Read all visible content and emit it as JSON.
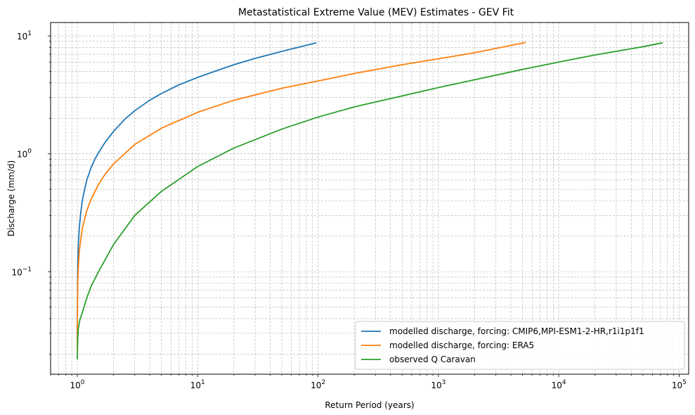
{
  "chart_data": {
    "type": "line",
    "title": "Metastatistical Extreme Value (MEV) Estimates - GEV Fit",
    "xlabel": "Return Period (years)",
    "ylabel": "Discharge (mm/d)",
    "xscale": "log",
    "yscale": "log",
    "xlim": [
      0.6,
      120000
    ],
    "ylim": [
      0.0135,
      13
    ],
    "xticks": [
      {
        "value": 1,
        "base": "10",
        "exp": "0"
      },
      {
        "value": 10,
        "base": "10",
        "exp": "1"
      },
      {
        "value": 100,
        "base": "10",
        "exp": "2"
      },
      {
        "value": 1000,
        "base": "10",
        "exp": "3"
      },
      {
        "value": 10000,
        "base": "10",
        "exp": "4"
      },
      {
        "value": 100000,
        "base": "10",
        "exp": "5"
      }
    ],
    "yticks": [
      {
        "value": 0.1,
        "base": "10",
        "exp": "−1"
      },
      {
        "value": 1,
        "base": "10",
        "exp": "0"
      },
      {
        "value": 10,
        "base": "10",
        "exp": "1"
      }
    ],
    "grid": true,
    "legend_position": "lower-right",
    "series": [
      {
        "name": "modelled discharge, forcing: CMIP6,MPI-ESM1-2-HR,r1i1p1f1",
        "color": "#1f77b4",
        "x": [
          1.0,
          1.002,
          1.005,
          1.01,
          1.02,
          1.04,
          1.07,
          1.1,
          1.15,
          1.2,
          1.3,
          1.4,
          1.5,
          1.7,
          2,
          2.5,
          3,
          4,
          5,
          7,
          10,
          15,
          20,
          30,
          50,
          70,
          97
        ],
        "y": [
          0.025,
          0.05,
          0.08,
          0.12,
          0.17,
          0.24,
          0.32,
          0.4,
          0.5,
          0.6,
          0.76,
          0.9,
          1.02,
          1.25,
          1.55,
          1.98,
          2.32,
          2.85,
          3.25,
          3.85,
          4.45,
          5.15,
          5.7,
          6.45,
          7.4,
          8.05,
          8.75
        ]
      },
      {
        "name": "modelled discharge, forcing: ERA5",
        "color": "#ff7f0e",
        "x": [
          1.0,
          1.002,
          1.005,
          1.01,
          1.02,
          1.04,
          1.07,
          1.1,
          1.15,
          1.2,
          1.3,
          1.5,
          1.7,
          2,
          3,
          5,
          10,
          20,
          50,
          100,
          200,
          500,
          1000,
          2000,
          5300
        ],
        "y": [
          0.022,
          0.04,
          0.06,
          0.085,
          0.11,
          0.15,
          0.19,
          0.23,
          0.28,
          0.33,
          0.41,
          0.55,
          0.67,
          0.82,
          1.2,
          1.65,
          2.25,
          2.85,
          3.6,
          4.15,
          4.8,
          5.7,
          6.4,
          7.2,
          8.8
        ]
      },
      {
        "name": "observed Q Caravan",
        "color": "#2ca02c",
        "x": [
          1.0,
          1.005,
          1.01,
          1.02,
          1.05,
          1.1,
          1.2,
          1.3,
          1.5,
          2,
          3,
          5,
          10,
          20,
          50,
          100,
          200,
          500,
          1000,
          2000,
          5000,
          10000,
          20000,
          50000,
          73000
        ],
        "y": [
          0.018,
          0.024,
          0.028,
          0.033,
          0.039,
          0.045,
          0.06,
          0.075,
          0.1,
          0.17,
          0.3,
          0.48,
          0.78,
          1.12,
          1.62,
          2.05,
          2.5,
          3.1,
          3.65,
          4.25,
          5.2,
          6.0,
          6.9,
          8.1,
          8.75
        ]
      }
    ]
  }
}
